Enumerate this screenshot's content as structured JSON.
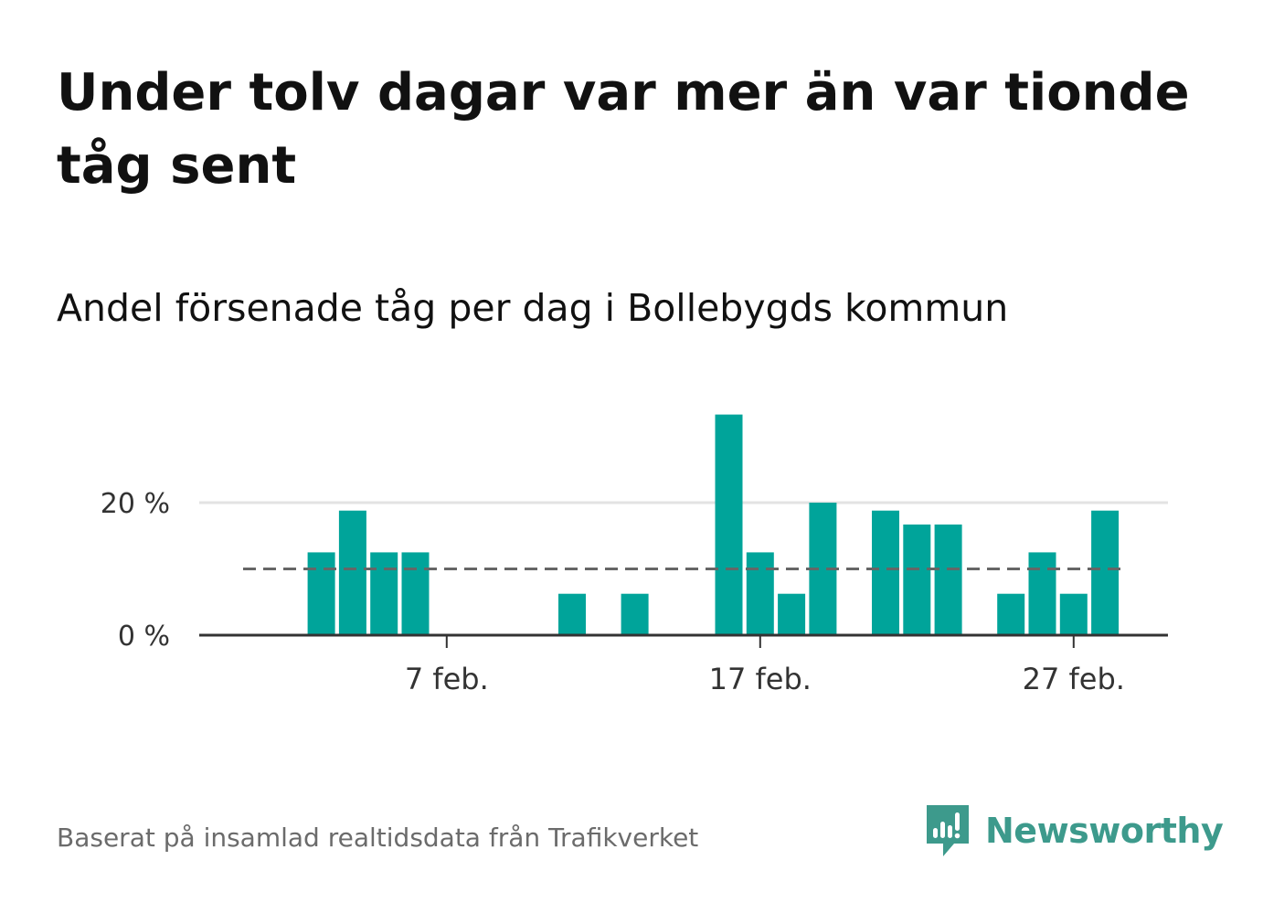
{
  "title": "Under tolv dagar var mer än var tionde tåg sent",
  "subtitle": "Andel försenade tåg per dag i Bollebygds kommun",
  "source": "Baserat på insamlad realtidsdata från Trafikverket",
  "brand": {
    "name": "Newsworthy",
    "icon": "newsworthy-logo-icon"
  },
  "colors": {
    "bar": "#00a49a",
    "brand": "#3d9a8c",
    "average_line": "#666666",
    "text": "#111111",
    "source": "#6b6b6b"
  },
  "chart_data": {
    "type": "bar",
    "x": [
      "1 feb.",
      "2 feb.",
      "3 feb.",
      "4 feb.",
      "5 feb.",
      "6 feb.",
      "7 feb.",
      "8 feb.",
      "9 feb.",
      "10 feb.",
      "11 feb.",
      "12 feb.",
      "13 feb.",
      "14 feb.",
      "15 feb.",
      "16 feb.",
      "17 feb.",
      "18 feb.",
      "19 feb.",
      "20 feb.",
      "21 feb.",
      "22 feb.",
      "23 feb.",
      "24 feb.",
      "25 feb.",
      "26 feb.",
      "27 feb.",
      "28 feb."
    ],
    "values": [
      null,
      null,
      12.5,
      18.8,
      12.5,
      12.5,
      0,
      0,
      0,
      0,
      6.25,
      0,
      6.25,
      0,
      0,
      33.3,
      12.5,
      6.25,
      20,
      0,
      18.8,
      16.7,
      16.7,
      0,
      6.25,
      12.5,
      6.25,
      18.8
    ],
    "x_ticks": [
      "7 feb.",
      "17 feb.",
      "27 feb."
    ],
    "y_ticks": [
      "0 %",
      "20 %"
    ],
    "y_tick_values": [
      0,
      20
    ],
    "ylim": [
      0,
      35
    ],
    "reference_line": 10,
    "grid": true
  }
}
